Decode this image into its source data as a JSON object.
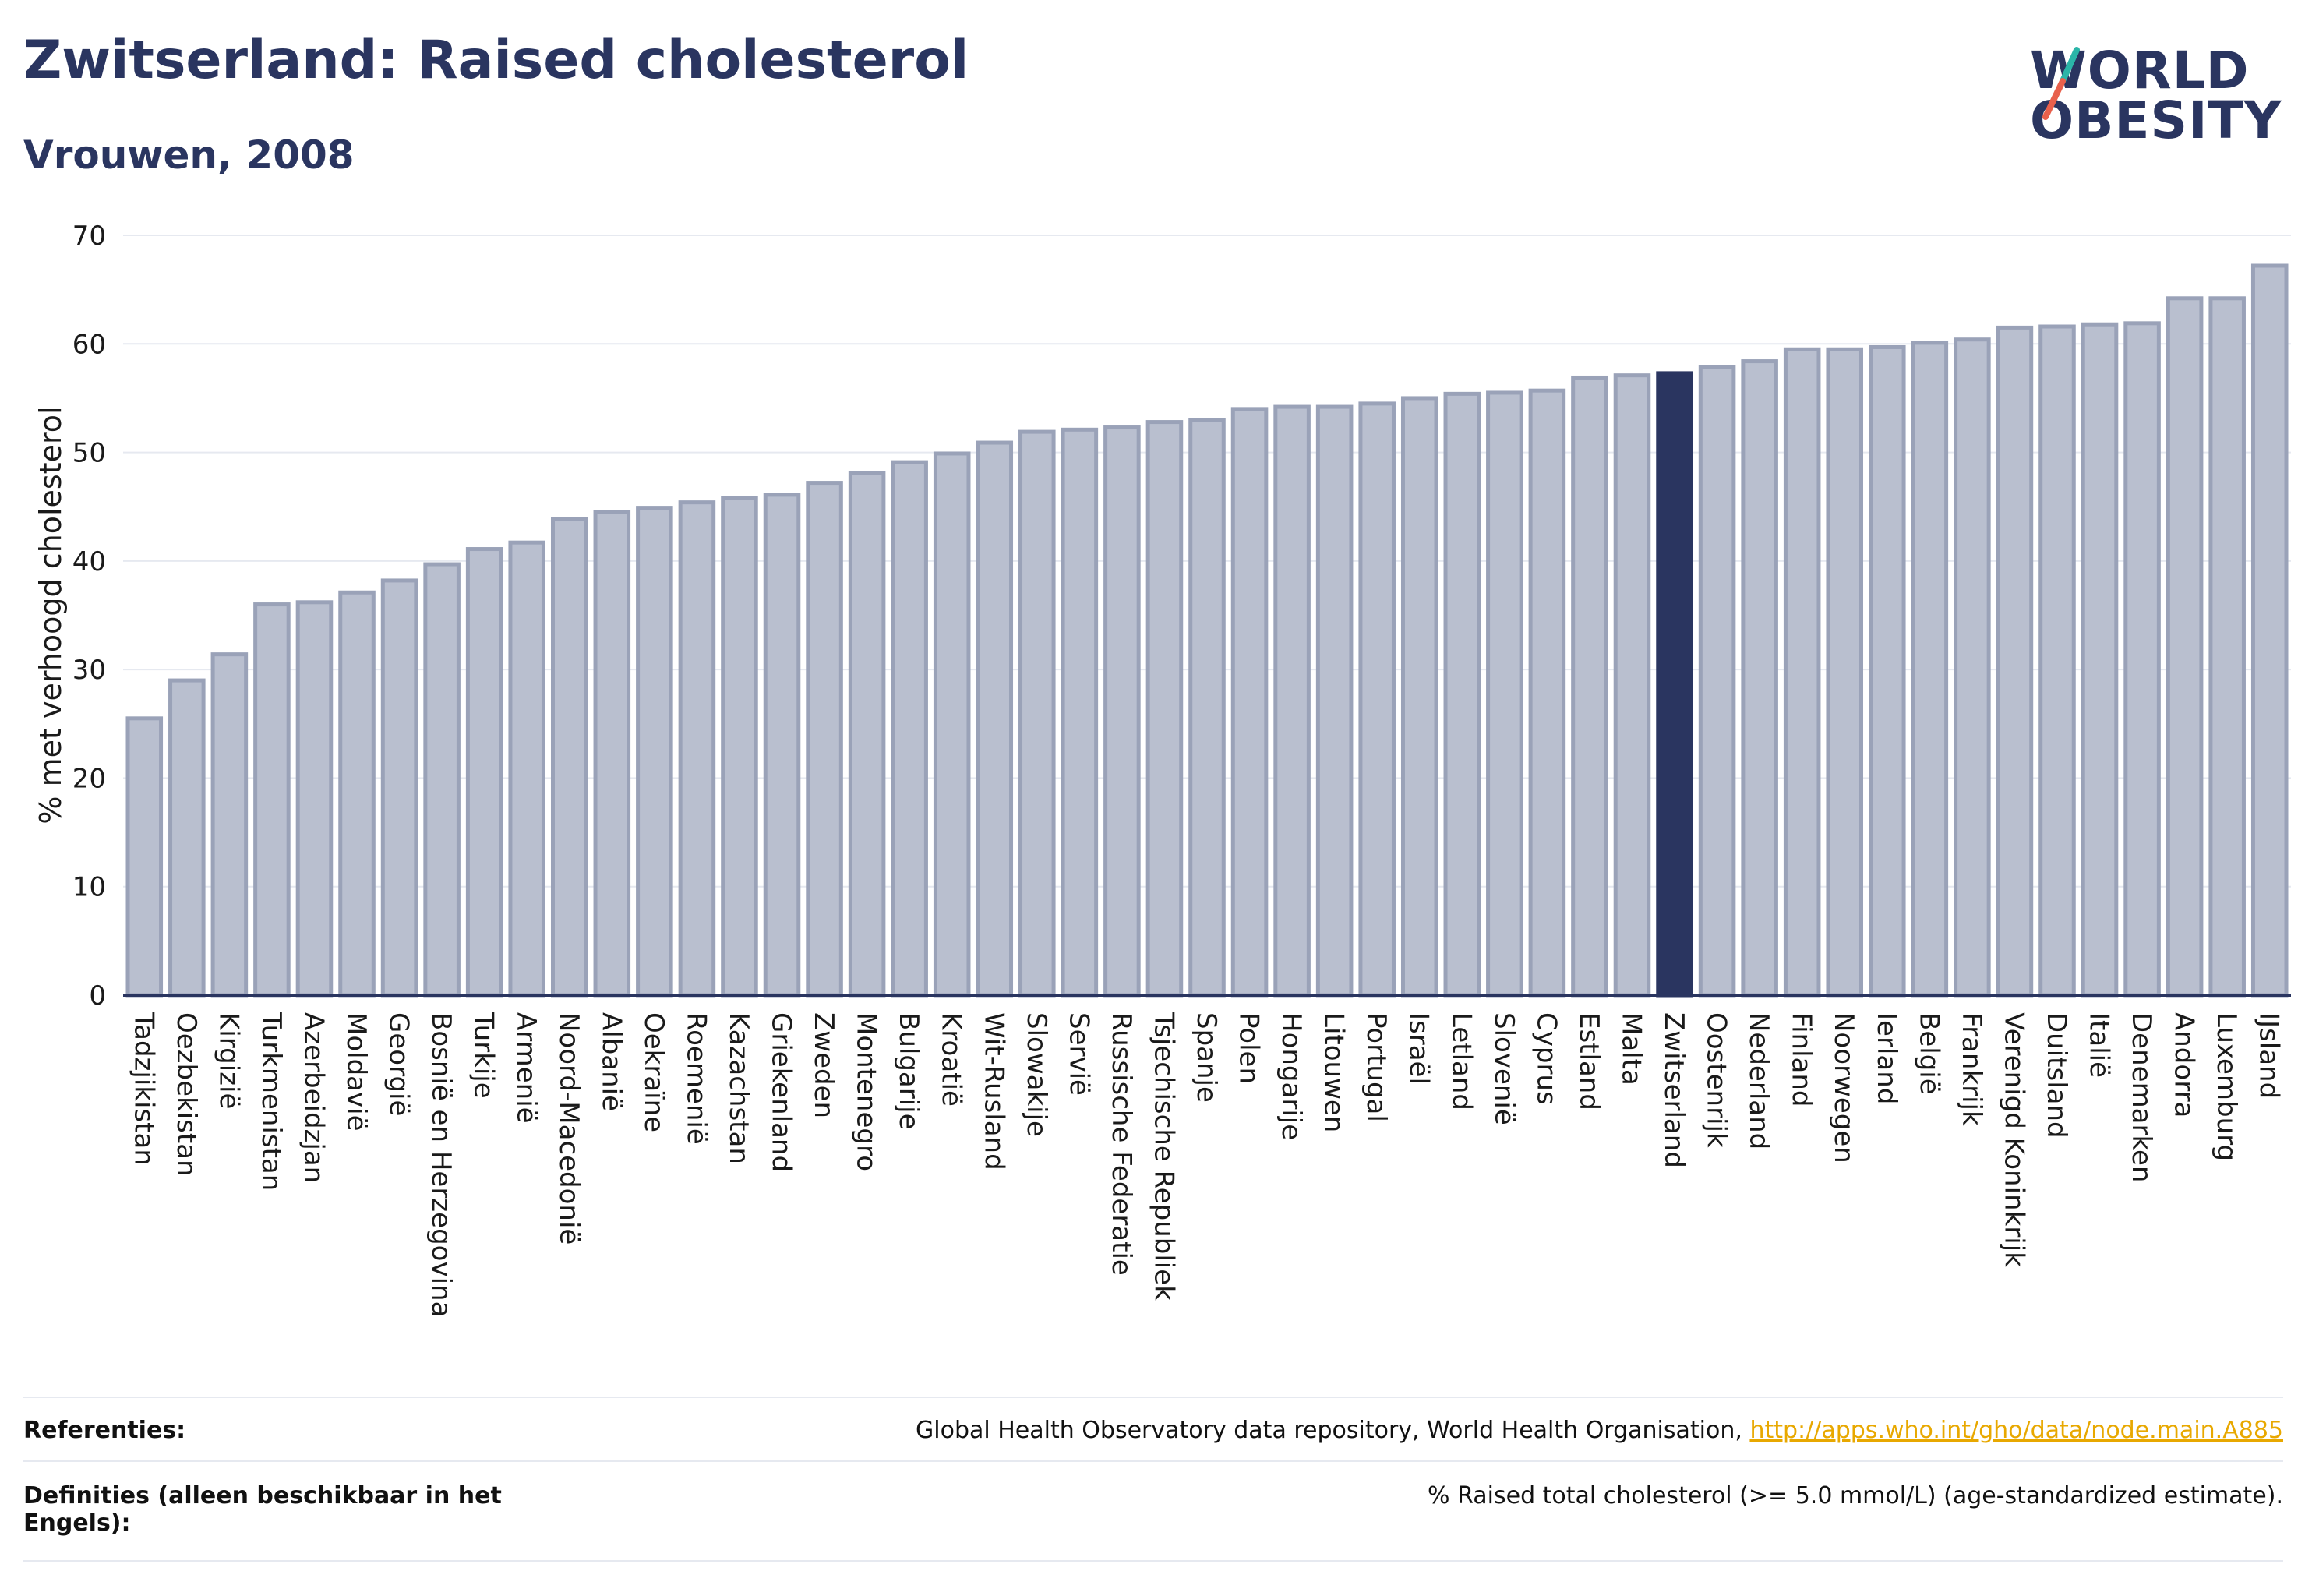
{
  "header": {
    "title": "Zwitserland: Raised cholesterol",
    "subtitle": "Vrouwen, 2008"
  },
  "logo": {
    "line1": "WORLD",
    "line2": "OBESITY",
    "colors": {
      "text": "#2a3560",
      "slash_top": "#2bb5a8",
      "slash_bottom": "#e8604c"
    }
  },
  "colors": {
    "bar_fill": "#b9bfcf",
    "bar_stroke": "#9aa2b8",
    "highlight": "#2a3560",
    "grid": "#e6e9f0",
    "axis": "#2a3560",
    "link": "#e8a800"
  },
  "chart_data": {
    "type": "bar",
    "title": "Zwitserland: Raised cholesterol",
    "subtitle": "Vrouwen, 2008",
    "xlabel": "",
    "ylabel": "% met verhoogd cholesterol",
    "ylim": [
      0,
      70
    ],
    "yticks": [
      0,
      10,
      20,
      30,
      40,
      50,
      60,
      70
    ],
    "grid": true,
    "highlight": "Zwitserland",
    "categories": [
      "Tadzjikistan",
      "Oezbekistan",
      "Kirgizië",
      "Turkmenistan",
      "Azerbeidzjan",
      "Moldavië",
      "Georgië",
      "Bosnië en Herzegovina",
      "Turkije",
      "Armenië",
      "Noord-Macedonië",
      "Albanië",
      "Oekraïne",
      "Roemenië",
      "Kazachstan",
      "Griekenland",
      "Zweden",
      "Montenegro",
      "Bulgarije",
      "Kroatië",
      "Wit-Rusland",
      "Slowakije",
      "Servië",
      "Russische Federatie",
      "Tsjechische Republiek",
      "Spanje",
      "Polen",
      "Hongarije",
      "Litouwen",
      "Portugal",
      "Israël",
      "Letland",
      "Slovenië",
      "Cyprus",
      "Estland",
      "Malta",
      "Zwitserland",
      "Oostenrijk",
      "Nederland",
      "Finland",
      "Noorwegen",
      "Ierland",
      "België",
      "Frankrijk",
      "Verenigd Koninkrijk",
      "Duitsland",
      "Italië",
      "Denemarken",
      "Andorra",
      "Luxemburg",
      "IJsland"
    ],
    "values": [
      25.5,
      29.0,
      31.4,
      36.0,
      36.2,
      37.1,
      38.2,
      39.7,
      41.1,
      41.7,
      43.9,
      44.5,
      44.9,
      45.4,
      45.8,
      46.1,
      47.2,
      48.1,
      49.1,
      49.9,
      50.9,
      51.9,
      52.1,
      52.3,
      52.8,
      53.0,
      54.0,
      54.2,
      54.2,
      54.5,
      55.0,
      55.4,
      55.5,
      55.7,
      56.9,
      57.1,
      57.3,
      57.9,
      58.4,
      59.5,
      59.5,
      59.7,
      60.1,
      60.4,
      61.5,
      61.6,
      61.8,
      61.9,
      64.2,
      64.2,
      67.2
    ]
  },
  "footer": {
    "references_label": "Referenties:",
    "references_text": "Global Health Observatory data repository, World Health Organisation, ",
    "references_link": "http://apps.who.int/gho/data/node.main.A885",
    "definitions_label": "Definities (alleen beschikbaar in het Engels):",
    "definitions_text": "% Raised total cholesterol (>= 5.0 mmol/L) (age-standardized estimate)."
  }
}
